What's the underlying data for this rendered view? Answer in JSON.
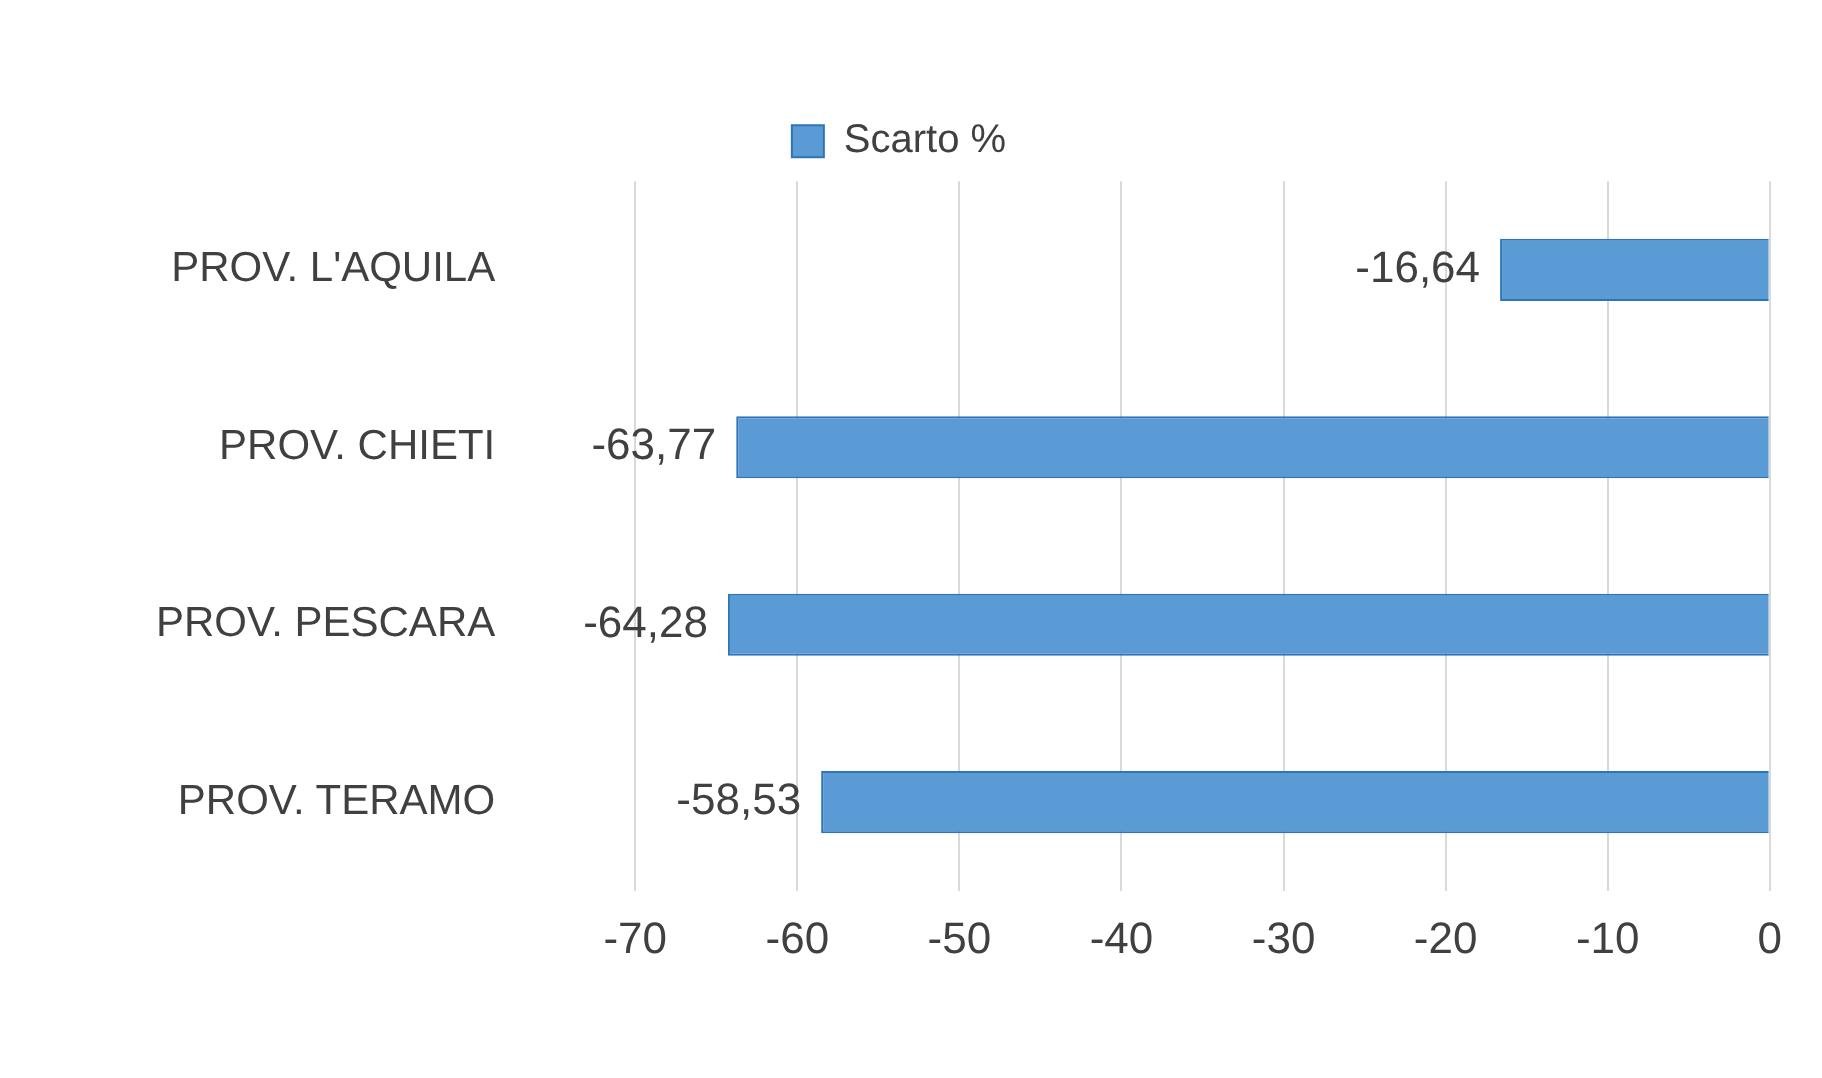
{
  "chart_data": {
    "type": "bar",
    "orientation": "horizontal",
    "categories": [
      "PROV. L'AQUILA",
      "PROV. CHIETI",
      "PROV. PESCARA",
      "PROV. TERAMO"
    ],
    "series": [
      {
        "name": "Scarto %",
        "color": "#5b9bd5",
        "values": [
          -16.64,
          -63.77,
          -64.28,
          -58.53
        ],
        "value_labels": [
          "-16,64",
          "-63,77",
          "-64,28",
          "-58,53"
        ]
      }
    ],
    "xlim": [
      -70,
      0
    ],
    "xticks": [
      -70,
      -60,
      -50,
      -40,
      -30,
      -20,
      -10,
      0
    ],
    "grid": "x",
    "legend": "top"
  }
}
